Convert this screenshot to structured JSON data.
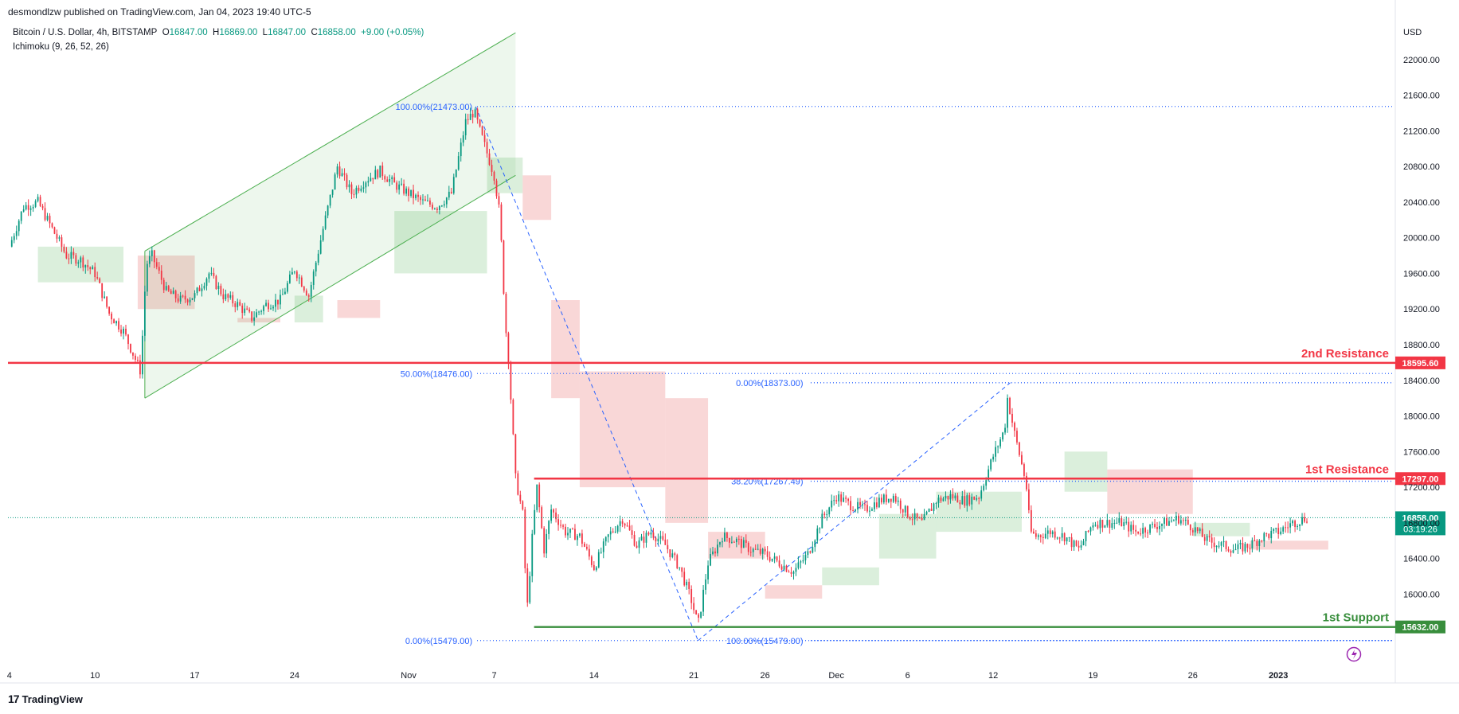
{
  "header": {
    "publisher": "desmondlzw published on TradingView.com, Jan 04, 2023 19:40 UTC-5",
    "symbol": "Bitcoin / U.S. Dollar, 4h, BITSTAMP",
    "o_label": "O",
    "o_value": "16847.00",
    "h_label": "H",
    "h_value": "16869.00",
    "l_label": "L",
    "l_value": "16847.00",
    "c_label": "C",
    "c_value": "16858.00",
    "change": "+9.00 (+0.05%)",
    "indicator": "Ichimoku (9, 26, 52, 26)",
    "currency": "USD"
  },
  "footer": {
    "logo_text": "TradingView",
    "logo_mark": "17"
  },
  "colors": {
    "up": "#089981",
    "down": "#f23645",
    "resistance": "#f23645",
    "support": "#388e3c",
    "fib": "#2962ff",
    "cloud_bull": "#a5d6a7",
    "cloud_bear": "#ef9a9a",
    "channel": "#4caf50"
  },
  "chart_data": {
    "type": "candlestick",
    "title": "Bitcoin / U.S. Dollar, 4h, BITSTAMP",
    "ylim": [
      15200,
      22400
    ],
    "y_ticks": [
      16000,
      16400,
      16800,
      17200,
      17600,
      18000,
      18400,
      18800,
      19200,
      19600,
      20000,
      20400,
      20800,
      21200,
      21600,
      22000
    ],
    "x_ticks": [
      {
        "label": "4",
        "day": 4
      },
      {
        "label": "10",
        "day": 10
      },
      {
        "label": "17",
        "day": 17
      },
      {
        "label": "24",
        "day": 24
      },
      {
        "label": "Nov",
        "day": 32
      },
      {
        "label": "7",
        "day": 38
      },
      {
        "label": "14",
        "day": 45
      },
      {
        "label": "21",
        "day": 52
      },
      {
        "label": "26",
        "day": 57
      },
      {
        "label": "Dec",
        "day": 62
      },
      {
        "label": "6",
        "day": 67
      },
      {
        "label": "12",
        "day": 73
      },
      {
        "label": "19",
        "day": 80
      },
      {
        "label": "26",
        "day": 87
      },
      {
        "label": "2023",
        "day": 93
      }
    ],
    "price_path": [
      [
        4,
        19900
      ],
      [
        5,
        20350
      ],
      [
        6,
        20400
      ],
      [
        7,
        20100
      ],
      [
        8,
        19800
      ],
      [
        9,
        19750
      ],
      [
        10,
        19600
      ],
      [
        11,
        19150
      ],
      [
        12,
        18950
      ],
      [
        13.2,
        18500
      ],
      [
        13.6,
        19700
      ],
      [
        14,
        19800
      ],
      [
        15,
        19400
      ],
      [
        16,
        19300
      ],
      [
        17,
        19350
      ],
      [
        18,
        19600
      ],
      [
        19,
        19350
      ],
      [
        20,
        19250
      ],
      [
        21,
        19100
      ],
      [
        22,
        19250
      ],
      [
        23,
        19300
      ],
      [
        24,
        19650
      ],
      [
        25,
        19350
      ],
      [
        26,
        20100
      ],
      [
        27,
        20800
      ],
      [
        28,
        20500
      ],
      [
        29,
        20650
      ],
      [
        30,
        20750
      ],
      [
        31,
        20600
      ],
      [
        32,
        20500
      ],
      [
        33,
        20400
      ],
      [
        34,
        20350
      ],
      [
        35,
        20500
      ],
      [
        36,
        21300
      ],
      [
        36.6,
        21420
      ],
      [
        37,
        21200
      ],
      [
        38,
        20700
      ],
      [
        38.4,
        20250
      ],
      [
        38.8,
        19000
      ],
      [
        39,
        18650
      ],
      [
        39.5,
        17300
      ],
      [
        40,
        16900
      ],
      [
        40.3,
        15800
      ],
      [
        40.7,
        16700
      ],
      [
        41,
        17200
      ],
      [
        41.5,
        16500
      ],
      [
        42,
        16950
      ],
      [
        43,
        16700
      ],
      [
        44,
        16650
      ],
      [
        45,
        16300
      ],
      [
        46,
        16650
      ],
      [
        47,
        16850
      ],
      [
        48,
        16550
      ],
      [
        49,
        16700
      ],
      [
        50,
        16550
      ],
      [
        51,
        16300
      ],
      [
        51.8,
        15950
      ],
      [
        52.3,
        15650
      ],
      [
        53,
        16350
      ],
      [
        54,
        16650
      ],
      [
        55,
        16600
      ],
      [
        56,
        16500
      ],
      [
        57,
        16450
      ],
      [
        58,
        16350
      ],
      [
        59,
        16250
      ],
      [
        60,
        16450
      ],
      [
        61,
        16850
      ],
      [
        62,
        17100
      ],
      [
        63,
        17000
      ],
      [
        64,
        16950
      ],
      [
        65,
        17050
      ],
      [
        66,
        17100
      ],
      [
        67,
        16900
      ],
      [
        68,
        16800
      ],
      [
        69,
        17050
      ],
      [
        70,
        17100
      ],
      [
        71,
        17050
      ],
      [
        72,
        17100
      ],
      [
        73,
        17550
      ],
      [
        73.8,
        17850
      ],
      [
        74,
        18200
      ],
      [
        74.5,
        17800
      ],
      [
        75.3,
        17250
      ],
      [
        75.6,
        16700
      ],
      [
        76,
        16650
      ],
      [
        77,
        16700
      ],
      [
        78,
        16650
      ],
      [
        79,
        16500
      ],
      [
        80,
        16800
      ],
      [
        81,
        16800
      ],
      [
        82,
        16800
      ],
      [
        83,
        16700
      ],
      [
        84,
        16750
      ],
      [
        85,
        16800
      ],
      [
        86,
        16850
      ],
      [
        87,
        16750
      ],
      [
        88,
        16600
      ],
      [
        89,
        16550
      ],
      [
        90,
        16500
      ],
      [
        91,
        16550
      ],
      [
        92,
        16650
      ],
      [
        93,
        16700
      ],
      [
        94,
        16800
      ],
      [
        95,
        16858
      ]
    ],
    "ichimoku_cloud": [
      {
        "from": 6,
        "to": 12,
        "top": 19900,
        "bottom": 19500,
        "kind": "bull"
      },
      {
        "from": 13,
        "to": 17,
        "top": 19800,
        "bottom": 19200,
        "kind": "bear"
      },
      {
        "from": 20,
        "to": 23,
        "top": 19100,
        "bottom": 19050,
        "kind": "bear"
      },
      {
        "from": 24,
        "to": 26,
        "top": 19350,
        "bottom": 19050,
        "kind": "bull"
      },
      {
        "from": 27,
        "to": 30,
        "top": 19300,
        "bottom": 19100,
        "kind": "bear"
      },
      {
        "from": 31,
        "to": 37.5,
        "top": 20300,
        "bottom": 19600,
        "kind": "bull"
      },
      {
        "from": 37.5,
        "to": 40,
        "top": 20900,
        "bottom": 20500,
        "kind": "bull"
      },
      {
        "from": 40,
        "to": 42,
        "top": 20700,
        "bottom": 20200,
        "kind": "bear"
      },
      {
        "from": 42,
        "to": 44,
        "top": 19300,
        "bottom": 18200,
        "kind": "bear"
      },
      {
        "from": 44,
        "to": 50,
        "top": 18500,
        "bottom": 17200,
        "kind": "bear"
      },
      {
        "from": 50,
        "to": 53,
        "top": 18200,
        "bottom": 16800,
        "kind": "bear"
      },
      {
        "from": 53,
        "to": 57,
        "top": 16700,
        "bottom": 16400,
        "kind": "bear"
      },
      {
        "from": 57,
        "to": 61,
        "top": 16100,
        "bottom": 15950,
        "kind": "bear"
      },
      {
        "from": 61,
        "to": 65,
        "top": 16300,
        "bottom": 16100,
        "kind": "bull"
      },
      {
        "from": 65,
        "to": 69,
        "top": 16900,
        "bottom": 16400,
        "kind": "bull"
      },
      {
        "from": 69,
        "to": 75,
        "top": 17150,
        "bottom": 16700,
        "kind": "bull"
      },
      {
        "from": 78,
        "to": 81,
        "top": 17600,
        "bottom": 17150,
        "kind": "bull"
      },
      {
        "from": 81,
        "to": 87,
        "top": 17400,
        "bottom": 16900,
        "kind": "bear"
      },
      {
        "from": 87,
        "to": 91,
        "top": 16800,
        "bottom": 16650,
        "kind": "bull"
      },
      {
        "from": 91,
        "to": 96.5,
        "top": 16600,
        "bottom": 16500,
        "kind": "bear"
      }
    ],
    "channel": {
      "upper": [
        [
          13.5,
          19850
        ],
        [
          39.5,
          22300
        ]
      ],
      "lower": [
        [
          13.5,
          18200
        ],
        [
          39.5,
          20700
        ]
      ]
    },
    "horizontal_levels": [
      {
        "name": "2nd Resistance",
        "price": 18595.6,
        "label": "18595.60",
        "color": "#f23645",
        "from": 0
      },
      {
        "name": "1st Resistance",
        "price": 17297,
        "label": "17297.00",
        "color": "#f23645",
        "from": 40.8
      },
      {
        "name": "1st Support",
        "price": 15632,
        "label": "15632.00",
        "color": "#388e3c",
        "from": 40.8
      }
    ],
    "current_price": {
      "price": 16858,
      "label": "16858.00",
      "countdown": "03:19:26",
      "color": "#089981"
    },
    "fib_labels": [
      {
        "text": "100.00%(21473.00)",
        "day": 36.7,
        "price": 21473,
        "line_from": 36.8
      },
      {
        "text": "50.00%(18476.00)",
        "day": 36.7,
        "price": 18476,
        "line_from": 36.8
      },
      {
        "text": "0.00%(15479.00)",
        "day": 36.7,
        "price": 15479,
        "line_from": 36.8
      },
      {
        "text": "0.00%(18373.00)",
        "day": 59.9,
        "price": 18373,
        "line_from": 60.2
      },
      {
        "text": "38.20%(17267.49)",
        "day": 59.9,
        "price": 17267.49,
        "line_from": 60.2
      },
      {
        "text": "100.00%(15479.00)",
        "day": 59.9,
        "price": 15479,
        "line_from": 60.2
      }
    ],
    "trend_lines": [
      [
        [
          36.7,
          21473
        ],
        [
          52.3,
          15479
        ]
      ],
      [
        [
          52.3,
          15479
        ],
        [
          74.2,
          18373
        ]
      ]
    ]
  }
}
